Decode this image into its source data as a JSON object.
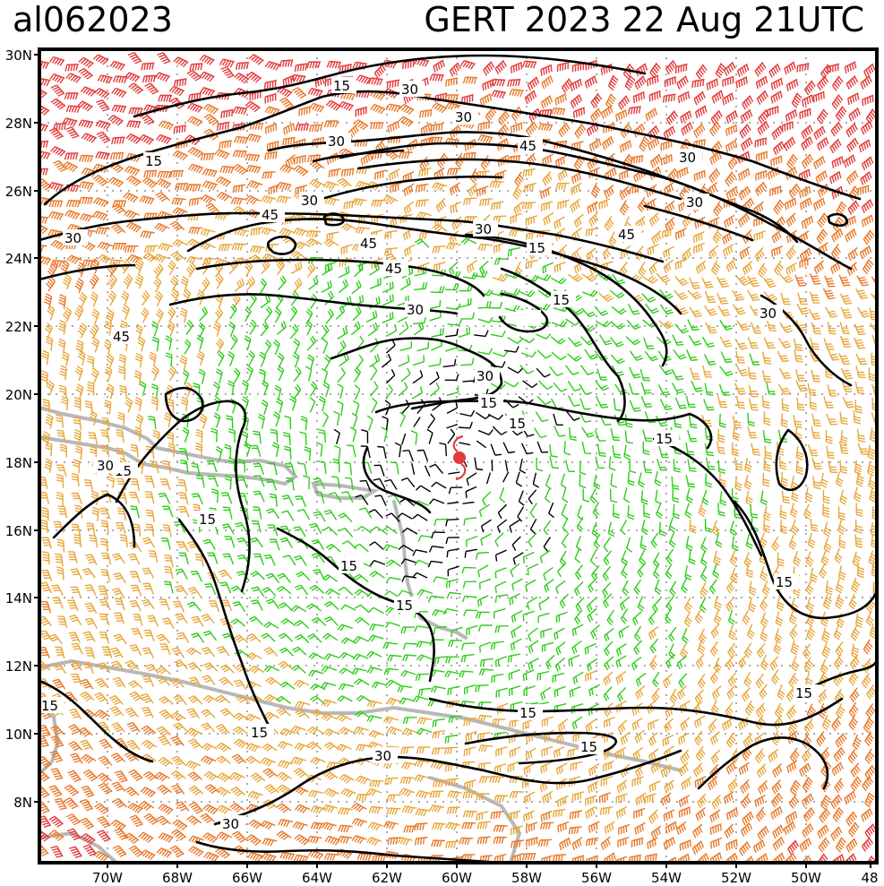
{
  "header": {
    "storm_id": "al062023",
    "title": "GERT 2023 22 Aug 21UTC"
  },
  "map": {
    "lat_labels": [
      "30N",
      "28N",
      "26N",
      "24N",
      "22N",
      "20N",
      "18N",
      "16N",
      "14N",
      "12N",
      "10N",
      "8N"
    ],
    "lon_labels": [
      "70W",
      "68W",
      "66W",
      "64W",
      "62W",
      "60W",
      "58W",
      "56W",
      "54W",
      "52W",
      "50W",
      "48"
    ],
    "contour_labels": [
      "15",
      "15",
      "15",
      "15",
      "15",
      "15",
      "15",
      "15",
      "15",
      "15",
      "15",
      "15",
      "15",
      "15",
      "15",
      "15",
      "15",
      "15",
      "30",
      "30",
      "30",
      "30",
      "30",
      "30",
      "30",
      "30",
      "30",
      "30",
      "45",
      "45",
      "45",
      "45",
      "45",
      "45"
    ],
    "colors": {
      "lt15": "#000000",
      "15to30": "#2fcc1a",
      "30to45": "#e8a63a",
      "45to60": "#e8792a",
      "gt60": "#e23a3a",
      "land": "#b8b8b8",
      "grid": "#aaaaaa"
    },
    "storm_marker": "tropical-storm-icon"
  }
}
